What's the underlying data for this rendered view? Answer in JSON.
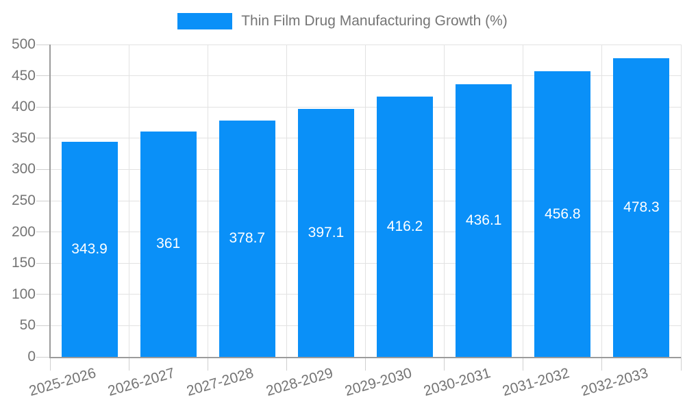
{
  "legend": {
    "label": "Thin Film Drug Manufacturing Growth (%)"
  },
  "chart_data": {
    "type": "bar",
    "title": "Thin Film Drug Manufacturing Growth (%)",
    "categories": [
      "2025-2026",
      "2026-2027",
      "2027-2028",
      "2028-2029",
      "2029-2030",
      "2030-2031",
      "2031-2032",
      "2032-2033"
    ],
    "values": [
      343.9,
      361,
      378.7,
      397.1,
      416.2,
      436.1,
      456.8,
      478.3
    ],
    "value_labels": [
      "343.9",
      "361",
      "378.7",
      "397.1",
      "416.2",
      "436.1",
      "456.8",
      "478.3"
    ],
    "xlabel": "",
    "ylabel": "",
    "ylim": [
      0,
      500
    ],
    "yticks": [
      0,
      50,
      100,
      150,
      200,
      250,
      300,
      350,
      400,
      450,
      500
    ],
    "grid": true,
    "legend_position": "top",
    "value_label_position": "center",
    "colors": {
      "bar": "#0a90f8",
      "value_label": "#ffffff",
      "axis_text": "#757575",
      "gridline": "#e2e2e2",
      "tick": "#cfcfcf",
      "axis_line": "#9b9b9b",
      "background": "#ffffff"
    }
  }
}
